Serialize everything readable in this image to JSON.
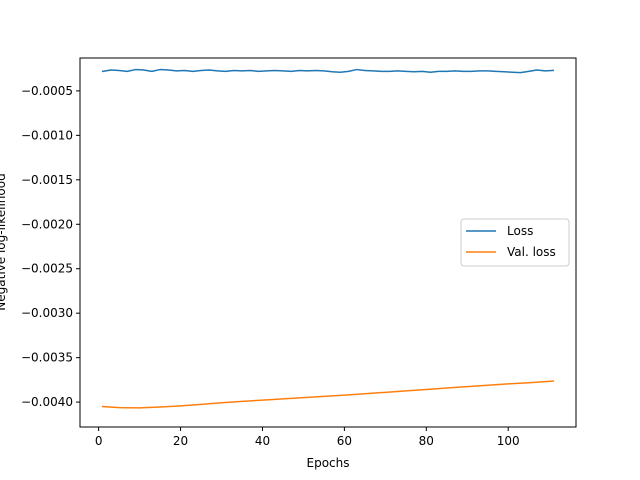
{
  "chart_data": {
    "type": "line",
    "title": "",
    "xlabel": "Epochs",
    "ylabel": "Negative log-likelihood",
    "xlim": [
      -4.55,
      116.55
    ],
    "ylim": [
      -0.00428,
      -0.00013
    ],
    "xticks": [
      0,
      20,
      40,
      60,
      80,
      100
    ],
    "yticks": [
      -0.004,
      -0.0035,
      -0.003,
      -0.0025,
      -0.002,
      -0.0015,
      -0.001,
      -0.0005
    ],
    "xtick_labels": [
      "0",
      "20",
      "40",
      "60",
      "80",
      "100"
    ],
    "ytick_labels": [
      "−0.0040",
      "−0.0035",
      "−0.0030",
      "−0.0025",
      "−0.0020",
      "−0.0015",
      "−0.0010",
      "−0.0005"
    ],
    "grid": false,
    "legend_position": "center-right",
    "series": [
      {
        "name": "Loss",
        "color": "#1f77b4",
        "x": [
          1,
          3,
          5,
          7,
          9,
          11,
          13,
          15,
          17,
          19,
          21,
          23,
          25,
          27,
          29,
          31,
          33,
          35,
          37,
          39,
          41,
          43,
          45,
          47,
          49,
          51,
          53,
          55,
          57,
          59,
          61,
          63,
          65,
          67,
          69,
          71,
          73,
          75,
          77,
          79,
          81,
          83,
          85,
          87,
          89,
          91,
          93,
          95,
          97,
          99,
          101,
          103,
          105,
          107,
          109,
          111
        ],
        "y": [
          -0.00028,
          -0.000265,
          -0.00027,
          -0.00028,
          -0.00026,
          -0.000265,
          -0.00028,
          -0.00026,
          -0.000265,
          -0.000275,
          -0.00027,
          -0.00028,
          -0.00027,
          -0.000265,
          -0.000275,
          -0.00028,
          -0.00027,
          -0.000275,
          -0.00027,
          -0.00028,
          -0.000275,
          -0.00027,
          -0.000275,
          -0.00028,
          -0.00027,
          -0.000275,
          -0.00027,
          -0.000275,
          -0.000285,
          -0.00029,
          -0.00028,
          -0.00026,
          -0.00027,
          -0.000275,
          -0.00028,
          -0.00028,
          -0.000275,
          -0.00028,
          -0.000285,
          -0.00028,
          -0.00029,
          -0.00028,
          -0.00028,
          -0.000275,
          -0.00028,
          -0.00028,
          -0.000275,
          -0.000275,
          -0.00028,
          -0.000285,
          -0.00029,
          -0.000295,
          -0.00028,
          -0.000265,
          -0.000275,
          -0.00027
        ]
      },
      {
        "name": "Val. loss",
        "color": "#ff7f0e",
        "x": [
          1,
          5,
          10,
          15,
          20,
          25,
          30,
          35,
          40,
          45,
          50,
          55,
          60,
          65,
          70,
          75,
          80,
          85,
          90,
          95,
          100,
          105,
          111
        ],
        "y": [
          -0.00405,
          -0.004062,
          -0.004065,
          -0.004055,
          -0.004042,
          -0.004025,
          -0.004008,
          -0.003992,
          -0.003978,
          -0.003964,
          -0.00395,
          -0.003936,
          -0.003921,
          -0.003906,
          -0.00389,
          -0.003874,
          -0.003858,
          -0.003842,
          -0.003826,
          -0.00381,
          -0.003795,
          -0.003782,
          -0.003763
        ]
      }
    ]
  }
}
